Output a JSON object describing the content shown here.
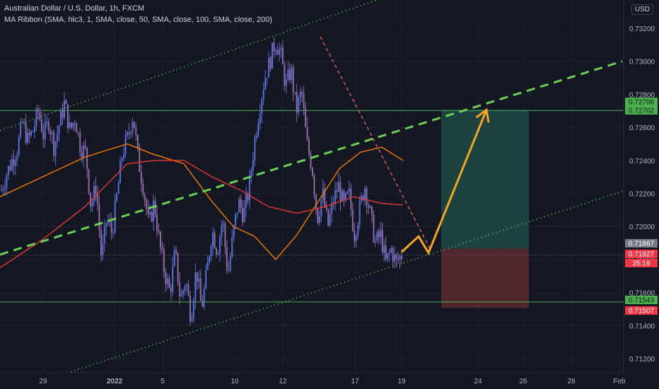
{
  "header": {
    "symbol_line": "Australian Dollar / U.S. Dollar, 1h, FXCM",
    "indicator_line": "MA Ribbon (SMA, hlc3, 1, SMA, close, 50, SMA, close, 100, SMA, close, 200)",
    "currency": "USD"
  },
  "colors": {
    "background": "#131722",
    "grid": "#1f2330",
    "candle": "#8f6aa6",
    "candle_up": "#5a6ed8",
    "ma50": "#f57c00",
    "ma100": "#e53935",
    "channel_green": "#4caf50",
    "arrow": "#f5a623",
    "target_zone": "#1e4a45",
    "stop_zone": "#5a2a2e",
    "resistance_dash": "#e8556e"
  },
  "chart_data": {
    "type": "candlestick",
    "x_tick_labels": [
      "29",
      "2022",
      "5",
      "10",
      "12",
      "17",
      "19",
      "24",
      "26",
      "28",
      "Feb"
    ],
    "y_tick_labels": [
      "0.73200",
      "0.73000",
      "0.72800",
      "0.72600",
      "0.72400",
      "0.72200",
      "0.72000",
      "0.71800",
      "0.71600",
      "0.71400",
      "0.71200"
    ],
    "ylim": [
      0.711,
      0.7335
    ],
    "price_badges": [
      {
        "label": "0.72706",
        "value": 0.72706,
        "color": "#4caf50"
      },
      {
        "label": "0.72702",
        "value": 0.72702,
        "color": "#4caf50"
      },
      {
        "label": "0.71867",
        "value": 0.71867,
        "color": "#787b86"
      },
      {
        "label": "0.71827",
        "value": 0.71827,
        "color": "#f23645"
      },
      {
        "label": "25:19",
        "value": 0.7179,
        "color": "#f23645"
      },
      {
        "label": "0.71543",
        "value": 0.71543,
        "color": "#4caf50"
      },
      {
        "label": "0.71507",
        "value": 0.71507,
        "color": "#f23645"
      }
    ],
    "horizontal_levels": [
      0.72702,
      0.71543
    ],
    "current_price_line": 0.71827,
    "price_path": [
      [
        0.7222,
        0.7232,
        0.724,
        0.7247,
        0.7263,
        0.7252,
        0.7258,
        0.727,
        0.7255,
        0.7264,
        0.7248,
        0.7262,
        0.7275,
        0.7258,
        0.7266,
        0.7248
      ],
      [
        0.7245,
        0.7212,
        0.7225,
        0.718,
        0.7205,
        0.7196,
        0.722,
        0.7245,
        0.7254,
        0.7268,
        0.724,
        0.7223,
        0.72,
        0.7215,
        0.719,
        0.7172
      ],
      [
        0.716,
        0.7185,
        0.7155,
        0.7168,
        0.7145,
        0.7175,
        0.715,
        0.7172,
        0.7198,
        0.7185,
        0.7205,
        0.717,
        0.7195,
        0.7215,
        0.7207,
        0.7222
      ],
      [
        0.725,
        0.7272,
        0.729,
        0.73,
        0.7312,
        0.7305,
        0.7285,
        0.7295,
        0.727,
        0.7282,
        0.725,
        0.7236,
        0.7205,
        0.722,
        0.72,
        0.7215
      ],
      [
        0.7225,
        0.7212,
        0.722,
        0.7195,
        0.721,
        0.7225,
        0.7208,
        0.719,
        0.7195,
        0.7178,
        0.7186,
        0.7178,
        0.7183
      ]
    ],
    "ma_series": [
      {
        "color": "#f57c00",
        "points": [
          [
            0,
            0.7218
          ],
          [
            60,
            0.723
          ],
          [
            120,
            0.7242
          ],
          [
            180,
            0.725
          ],
          [
            215,
            0.7244
          ],
          [
            260,
            0.7238
          ],
          [
            300,
            0.7215
          ],
          [
            330,
            0.72
          ],
          [
            360,
            0.7194
          ],
          [
            390,
            0.718
          ],
          [
            420,
            0.7195
          ],
          [
            450,
            0.7215
          ],
          [
            480,
            0.7235
          ],
          [
            510,
            0.7245
          ],
          [
            540,
            0.7248
          ],
          [
            570,
            0.724
          ]
        ]
      },
      {
        "color": "#e53935",
        "points": [
          [
            0,
            0.7175
          ],
          [
            60,
            0.7192
          ],
          [
            120,
            0.7212
          ],
          [
            180,
            0.7238
          ],
          [
            220,
            0.724
          ],
          [
            260,
            0.724
          ],
          [
            300,
            0.723
          ],
          [
            340,
            0.7222
          ],
          [
            380,
            0.7212
          ],
          [
            420,
            0.7208
          ],
          [
            460,
            0.7212
          ],
          [
            500,
            0.7218
          ],
          [
            540,
            0.7214
          ],
          [
            570,
            0.7213
          ]
        ]
      }
    ],
    "trendlines": [
      {
        "style": "dotted",
        "points": [
          [
            0,
            0.7258
          ],
          [
            620,
            0.735
          ]
        ]
      },
      {
        "style": "dashed",
        "points": [
          [
            0,
            0.7183
          ],
          [
            880,
            0.73
          ]
        ]
      },
      {
        "style": "dotted",
        "points": [
          [
            100,
            0.7112
          ],
          [
            885,
            0.7222
          ]
        ]
      },
      {
        "style": "dashed_red",
        "points": [
          [
            453,
            0.7315
          ],
          [
            610,
            0.7185
          ]
        ]
      }
    ],
    "arrow_path": [
      [
        568,
        0.71845
      ],
      [
        592,
        0.7194
      ],
      [
        606,
        0.7184
      ],
      [
        688,
        0.72706
      ]
    ],
    "position": {
      "x_start": 624,
      "x_end": 748,
      "entry": 0.71867,
      "target": 0.72706,
      "stop": 0.71507
    }
  }
}
